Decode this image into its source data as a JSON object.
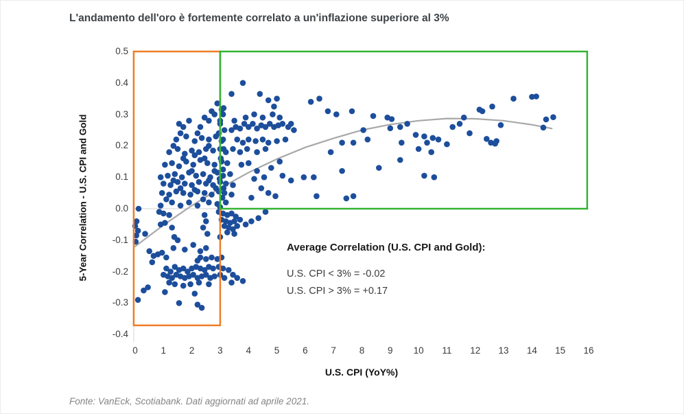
{
  "title": "L'andamento dell'oro è fortemente correlato a un'inflazione superiore al 3%",
  "source_note": "Fonte: VanEck, Scotiabank. Dati aggiornati ad aprile 2021.",
  "annotation": {
    "heading": "Average Correlation (U.S. CPI and Gold):",
    "lines": [
      "U.S. CPI < 3% = -0.02",
      "U.S. CPI > 3% = +0.17"
    ]
  },
  "colors": {
    "point": "#1d4e9b",
    "curve": "#a8a8a8",
    "zero_line": "#d9d9d9",
    "axis_line": "#dcdcdc",
    "box_below_3": "#ee7d26",
    "box_above_3": "#32b432",
    "title_text": "#3e4347"
  },
  "chart_data": {
    "type": "scatter",
    "title": "L'andamento dell'oro è fortemente correlato a un'inflazione superiore al 3%",
    "xlabel": "U.S. CPI (YoY%)",
    "ylabel": "5-Year Correlation - U.S. CPI and Gold",
    "xlim": [
      0,
      16
    ],
    "ylim": [
      -0.4,
      0.5
    ],
    "x_ticks": [
      "0",
      "1",
      "2",
      "3",
      "4",
      "5",
      "6",
      "7",
      "8",
      "9",
      "10",
      "11",
      "12",
      "13",
      "14",
      "15",
      "16"
    ],
    "y_ticks": [
      "0.5",
      "0.4",
      "0.3",
      "0.2",
      "0.1",
      "0.0",
      "-0.1",
      "-0.2",
      "-0.3",
      "-0.4"
    ],
    "grid": "horizontal zero-line only",
    "legend": "none",
    "avg_correlation_below_3pct": -0.02,
    "avg_correlation_above_3pct": 0.17,
    "highlight_boxes": [
      {
        "name": "box-cpi-below-3pct",
        "x0": -0.05,
        "x1": 3.0,
        "y0": -0.371,
        "y1": 0.5,
        "color": "#ee7d26"
      },
      {
        "name": "box-cpi-above-3pct",
        "x0": 3.0,
        "x1": 15.95,
        "y0": 0.0,
        "y1": 0.5,
        "color": "#32b432"
      }
    ],
    "trend_curve": [
      [
        0,
        -0.12
      ],
      [
        1,
        -0.052
      ],
      [
        2,
        0.01
      ],
      [
        3,
        0.065
      ],
      [
        4,
        0.115
      ],
      [
        5,
        0.158
      ],
      [
        6,
        0.195
      ],
      [
        7,
        0.224
      ],
      [
        8,
        0.25
      ],
      [
        9,
        0.268
      ],
      [
        10,
        0.28
      ],
      [
        11,
        0.287
      ],
      [
        12,
        0.286
      ],
      [
        13,
        0.28
      ],
      [
        14,
        0.267
      ],
      [
        14.7,
        0.255
      ]
    ],
    "points": [
      [
        0.05,
        -0.04
      ],
      [
        0.0,
        -0.055
      ],
      [
        0.1,
        -0.07
      ],
      [
        0.04,
        -0.085
      ],
      [
        0.02,
        -0.105
      ],
      [
        0.1,
        -0.29
      ],
      [
        0.12,
        0.0
      ],
      [
        0.35,
        -0.08
      ],
      [
        0.5,
        -0.135
      ],
      [
        0.65,
        -0.15
      ],
      [
        0.8,
        -0.145
      ],
      [
        0.95,
        -0.14
      ],
      [
        1.1,
        -0.155
      ],
      [
        0.6,
        -0.17
      ],
      [
        0.45,
        -0.25
      ],
      [
        0.3,
        -0.26
      ],
      [
        1.38,
        -0.09
      ],
      [
        1.5,
        -0.1
      ],
      [
        1.1,
        -0.19
      ],
      [
        1.25,
        -0.2
      ],
      [
        1.4,
        -0.185
      ],
      [
        1.55,
        -0.195
      ],
      [
        1.7,
        -0.19
      ],
      [
        1.85,
        -0.2
      ],
      [
        2.0,
        -0.19
      ],
      [
        2.15,
        -0.185
      ],
      [
        2.3,
        -0.19
      ],
      [
        2.45,
        -0.195
      ],
      [
        2.6,
        -0.185
      ],
      [
        2.75,
        -0.19
      ],
      [
        2.95,
        -0.185
      ],
      [
        3.1,
        -0.19
      ],
      [
        3.3,
        -0.195
      ],
      [
        1.0,
        -0.21
      ],
      [
        1.15,
        -0.215
      ],
      [
        1.3,
        -0.22
      ],
      [
        1.45,
        -0.21
      ],
      [
        1.6,
        -0.215
      ],
      [
        1.75,
        -0.22
      ],
      [
        1.9,
        -0.215
      ],
      [
        2.05,
        -0.21
      ],
      [
        2.2,
        -0.22
      ],
      [
        2.35,
        -0.215
      ],
      [
        2.5,
        -0.21
      ],
      [
        2.65,
        -0.22
      ],
      [
        2.8,
        -0.215
      ],
      [
        3.0,
        -0.21
      ],
      [
        3.15,
        -0.22
      ],
      [
        3.45,
        -0.21
      ],
      [
        3.6,
        -0.22
      ],
      [
        3.8,
        -0.23
      ],
      [
        1.2,
        -0.235
      ],
      [
        1.4,
        -0.24
      ],
      [
        1.7,
        -0.245
      ],
      [
        1.95,
        -0.24
      ],
      [
        2.25,
        -0.235
      ],
      [
        2.6,
        -0.24
      ],
      [
        3.4,
        -0.235
      ],
      [
        1.05,
        -0.265
      ],
      [
        2.1,
        -0.27
      ],
      [
        1.55,
        -0.3
      ],
      [
        2.2,
        -0.305
      ],
      [
        2.35,
        -0.315
      ],
      [
        2.3,
        -0.155
      ],
      [
        2.5,
        -0.16
      ],
      [
        2.7,
        -0.155
      ],
      [
        2.9,
        -0.16
      ],
      [
        3.05,
        -0.155
      ],
      [
        2.2,
        -0.165
      ],
      [
        1.35,
        -0.125
      ],
      [
        1.75,
        -0.13
      ],
      [
        2.3,
        -0.135
      ],
      [
        2.5,
        -0.125
      ],
      [
        2.05,
        -0.115
      ],
      [
        0.85,
        -0.01
      ],
      [
        1.0,
        -0.015
      ],
      [
        1.2,
        -0.02
      ],
      [
        1.05,
        -0.045
      ],
      [
        0.9,
        -0.05
      ],
      [
        1.3,
        -0.06
      ],
      [
        2.45,
        -0.02
      ],
      [
        2.5,
        -0.04
      ],
      [
        2.55,
        -0.08
      ],
      [
        2.4,
        -0.06
      ],
      [
        2.95,
        -0.01
      ],
      [
        3.1,
        -0.015
      ],
      [
        3.25,
        -0.02
      ],
      [
        3.4,
        -0.015
      ],
      [
        3.55,
        -0.025
      ],
      [
        3.05,
        -0.035
      ],
      [
        3.2,
        -0.04
      ],
      [
        3.35,
        -0.045
      ],
      [
        3.5,
        -0.04
      ],
      [
        3.7,
        -0.035
      ],
      [
        3.15,
        -0.055
      ],
      [
        3.3,
        -0.06
      ],
      [
        3.45,
        -0.065
      ],
      [
        3.6,
        -0.055
      ],
      [
        3.9,
        -0.05
      ],
      [
        3.25,
        -0.075
      ],
      [
        3.5,
        -0.08
      ],
      [
        4.1,
        -0.04
      ],
      [
        4.35,
        -0.03
      ],
      [
        4.6,
        -0.01
      ],
      [
        3.0,
        -0.09
      ],
      [
        0.9,
        0.01
      ],
      [
        1.3,
        0.02
      ],
      [
        1.6,
        0.01
      ],
      [
        1.9,
        0.02
      ],
      [
        2.2,
        0.01
      ],
      [
        2.6,
        0.02
      ],
      [
        2.9,
        0.015
      ],
      [
        3.2,
        0.02
      ],
      [
        1.1,
        0.03
      ],
      [
        2.4,
        0.03
      ],
      [
        0.95,
        0.05
      ],
      [
        1.2,
        0.045
      ],
      [
        1.45,
        0.055
      ],
      [
        1.7,
        0.05
      ],
      [
        1.95,
        0.045
      ],
      [
        2.2,
        0.055
      ],
      [
        2.45,
        0.05
      ],
      [
        2.7,
        0.045
      ],
      [
        2.95,
        0.055
      ],
      [
        3.15,
        0.05
      ],
      [
        3.4,
        0.045
      ],
      [
        1.6,
        0.065
      ],
      [
        2.1,
        0.06
      ],
      [
        2.85,
        0.065
      ],
      [
        1.0,
        0.08
      ],
      [
        1.25,
        0.075
      ],
      [
        1.5,
        0.085
      ],
      [
        1.75,
        0.08
      ],
      [
        2.0,
        0.075
      ],
      [
        2.25,
        0.085
      ],
      [
        2.5,
        0.08
      ],
      [
        2.75,
        0.075
      ],
      [
        3.0,
        0.085
      ],
      [
        3.2,
        0.08
      ],
      [
        3.45,
        0.075
      ],
      [
        1.35,
        0.09
      ],
      [
        2.6,
        0.09
      ],
      [
        0.9,
        0.1
      ],
      [
        1.15,
        0.105
      ],
      [
        1.4,
        0.11
      ],
      [
        1.65,
        0.1
      ],
      [
        1.9,
        0.115
      ],
      [
        2.15,
        0.105
      ],
      [
        2.4,
        0.11
      ],
      [
        2.65,
        0.1
      ],
      [
        2.9,
        0.115
      ],
      [
        3.1,
        0.105
      ],
      [
        3.35,
        0.11
      ],
      [
        2.0,
        0.12
      ],
      [
        2.8,
        0.12
      ],
      [
        1.05,
        0.14
      ],
      [
        1.3,
        0.145
      ],
      [
        1.55,
        0.135
      ],
      [
        1.8,
        0.15
      ],
      [
        2.05,
        0.14
      ],
      [
        2.3,
        0.155
      ],
      [
        2.55,
        0.145
      ],
      [
        2.8,
        0.14
      ],
      [
        3.05,
        0.15
      ],
      [
        3.25,
        0.145
      ],
      [
        1.7,
        0.16
      ],
      [
        2.45,
        0.16
      ],
      [
        1.2,
        0.18
      ],
      [
        1.5,
        0.19
      ],
      [
        1.75,
        0.175
      ],
      [
        2.0,
        0.185
      ],
      [
        2.25,
        0.18
      ],
      [
        2.5,
        0.19
      ],
      [
        2.75,
        0.185
      ],
      [
        3.0,
        0.19
      ],
      [
        3.2,
        0.18
      ],
      [
        1.35,
        0.2
      ],
      [
        2.6,
        0.2
      ],
      [
        2.1,
        0.17
      ],
      [
        1.45,
        0.22
      ],
      [
        1.8,
        0.23
      ],
      [
        2.1,
        0.215
      ],
      [
        2.35,
        0.225
      ],
      [
        2.6,
        0.22
      ],
      [
        2.85,
        0.23
      ],
      [
        3.1,
        0.22
      ],
      [
        1.6,
        0.24
      ],
      [
        2.95,
        0.24
      ],
      [
        2.2,
        0.24
      ],
      [
        1.55,
        0.27
      ],
      [
        1.9,
        0.28
      ],
      [
        2.3,
        0.26
      ],
      [
        2.6,
        0.28
      ],
      [
        2.8,
        0.3
      ],
      [
        3.0,
        0.27
      ],
      [
        2.45,
        0.29
      ],
      [
        1.7,
        0.26
      ],
      [
        2.7,
        0.31
      ],
      [
        2.9,
        0.335
      ],
      [
        3.05,
        0.315
      ],
      [
        3.0,
        0.005
      ],
      [
        3.08,
        0.035
      ],
      [
        3.12,
        0.065
      ],
      [
        2.98,
        0.095
      ],
      [
        3.1,
        0.125
      ],
      [
        3.02,
        0.16
      ],
      [
        3.12,
        0.19
      ],
      [
        3.05,
        0.215
      ],
      [
        3.15,
        0.25
      ],
      [
        3.0,
        0.28
      ],
      [
        3.1,
        0.3
      ],
      [
        3.12,
        0.32
      ],
      [
        3.4,
        0.25
      ],
      [
        3.55,
        0.26
      ],
      [
        3.7,
        0.255
      ],
      [
        3.85,
        0.27
      ],
      [
        4.0,
        0.26
      ],
      [
        4.15,
        0.27
      ],
      [
        4.3,
        0.255
      ],
      [
        4.45,
        0.265
      ],
      [
        4.6,
        0.26
      ],
      [
        4.75,
        0.27
      ],
      [
        4.9,
        0.26
      ],
      [
        5.05,
        0.265
      ],
      [
        5.2,
        0.27
      ],
      [
        3.5,
        0.28
      ],
      [
        3.9,
        0.29
      ],
      [
        4.2,
        0.3
      ],
      [
        4.5,
        0.29
      ],
      [
        4.85,
        0.3
      ],
      [
        5.1,
        0.29
      ],
      [
        3.6,
        0.22
      ],
      [
        3.8,
        0.21
      ],
      [
        4.0,
        0.22
      ],
      [
        4.25,
        0.215
      ],
      [
        4.5,
        0.22
      ],
      [
        4.7,
        0.21
      ],
      [
        5.0,
        0.215
      ],
      [
        5.3,
        0.22
      ],
      [
        3.45,
        0.19
      ],
      [
        3.7,
        0.18
      ],
      [
        3.95,
        0.19
      ],
      [
        4.3,
        0.18
      ],
      [
        4.6,
        0.19
      ],
      [
        5.4,
        0.26
      ],
      [
        5.5,
        0.27
      ],
      [
        5.6,
        0.25
      ],
      [
        3.75,
        0.14
      ],
      [
        4.0,
        0.145
      ],
      [
        4.3,
        0.12
      ],
      [
        4.55,
        0.1
      ],
      [
        4.2,
        0.095
      ],
      [
        4.45,
        0.065
      ],
      [
        4.7,
        0.05
      ],
      [
        4.95,
        0.04
      ],
      [
        4.1,
        0.035
      ],
      [
        5.2,
        0.105
      ],
      [
        5.5,
        0.09
      ],
      [
        5.95,
        0.1
      ],
      [
        6.4,
        0.04
      ],
      [
        4.8,
        0.13
      ],
      [
        5.1,
        0.15
      ],
      [
        6.3,
        0.1
      ],
      [
        7.45,
        0.033
      ],
      [
        7.7,
        0.04
      ],
      [
        3.8,
        0.4
      ],
      [
        3.4,
        0.365
      ],
      [
        4.4,
        0.365
      ],
      [
        4.7,
        0.345
      ],
      [
        5.0,
        0.35
      ],
      [
        4.9,
        0.325
      ],
      [
        6.5,
        0.35
      ],
      [
        6.2,
        0.34
      ],
      [
        6.8,
        0.31
      ],
      [
        7.1,
        0.3
      ],
      [
        7.65,
        0.31
      ],
      [
        8.4,
        0.295
      ],
      [
        8.9,
        0.29
      ],
      [
        9.05,
        0.285
      ],
      [
        9.0,
        0.256
      ],
      [
        9.35,
        0.26
      ],
      [
        9.6,
        0.27
      ],
      [
        9.9,
        0.235
      ],
      [
        10.2,
        0.23
      ],
      [
        10.5,
        0.225
      ],
      [
        10.7,
        0.22
      ],
      [
        10.3,
        0.21
      ],
      [
        9.4,
        0.21
      ],
      [
        7.7,
        0.21
      ],
      [
        7.3,
        0.21
      ],
      [
        8.2,
        0.22
      ],
      [
        10.0,
        0.19
      ],
      [
        10.45,
        0.18
      ],
      [
        11.0,
        0.205
      ],
      [
        11.2,
        0.26
      ],
      [
        11.45,
        0.27
      ],
      [
        6.9,
        0.18
      ],
      [
        7.3,
        0.12
      ],
      [
        8.6,
        0.13
      ],
      [
        9.35,
        0.155
      ],
      [
        10.2,
        0.105
      ],
      [
        10.55,
        0.1
      ],
      [
        11.6,
        0.29
      ],
      [
        8.05,
        0.25
      ],
      [
        11.8,
        0.24
      ],
      [
        12.15,
        0.315
      ],
      [
        12.25,
        0.31
      ],
      [
        12.6,
        0.325
      ],
      [
        12.9,
        0.266
      ],
      [
        13.35,
        0.35
      ],
      [
        14.0,
        0.356
      ],
      [
        14.15,
        0.357
      ],
      [
        12.4,
        0.222
      ],
      [
        12.55,
        0.21
      ],
      [
        12.7,
        0.207
      ],
      [
        12.75,
        0.215
      ],
      [
        14.4,
        0.258
      ],
      [
        14.5,
        0.284
      ],
      [
        14.75,
        0.291
      ]
    ]
  }
}
